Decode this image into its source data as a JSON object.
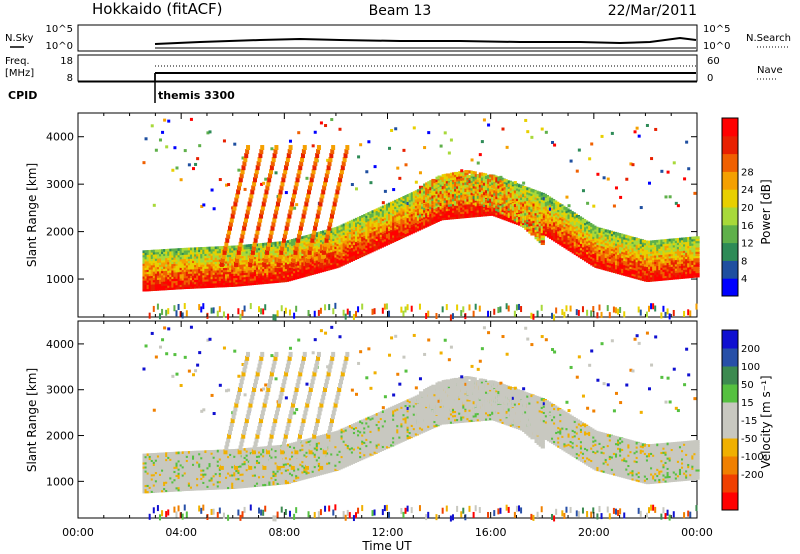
{
  "header": {
    "station": "Hokkaido (fitACF)",
    "beam": "Beam 13",
    "date": "22/Mar/2011"
  },
  "status_panels": {
    "nsky_label": "N.Sky",
    "nsearch_label": "N.Search",
    "noise_ticks_left": [
      "10^5",
      "10^0"
    ],
    "noise_ticks_right": [
      "10^5",
      "10^0"
    ],
    "freq_label_1": "Freq.",
    "freq_label_2": "[MHz]",
    "freq_ticks": [
      "18",
      "8"
    ],
    "nave_label": "Nave",
    "nave_ticks": [
      "60",
      "0"
    ],
    "cpid_label": "CPID",
    "cpid_value": "themis 3300"
  },
  "colors": {
    "power_scale": [
      "#0000ff",
      "#1f4fa0",
      "#2e8b57",
      "#5fb04a",
      "#a8d93a",
      "#e8d000",
      "#f5a000",
      "#f06000",
      "#e82000",
      "#ff0000"
    ],
    "velocity_scale": [
      "#1010d0",
      "#2850a8",
      "#3c8a50",
      "#55c040",
      "#c8c8c0",
      "#c8c8c0",
      "#f0b000",
      "#f08000",
      "#f04000",
      "#ff0000"
    ]
  },
  "chart_data": [
    {
      "type": "heatmap",
      "panel": "power",
      "ylabel": "Slant Range [km]",
      "yticks": [
        1000,
        2000,
        3000,
        4000
      ],
      "ylim": [
        200,
        4500
      ],
      "xlim": [
        0,
        24
      ],
      "colorbar_label": "Power [dB]",
      "colorbar_ticks": [
        4,
        8,
        12,
        16,
        20,
        24,
        28
      ],
      "colorbar_range": [
        0,
        32
      ],
      "data_start_hour": 2.5,
      "bands": [
        {
          "name": "lower",
          "x": [
            2.5,
            4,
            6,
            8,
            10,
            12,
            14,
            16,
            18,
            20,
            22,
            24
          ],
          "y": [
            900,
            950,
            1000,
            1100,
            1400,
            1900,
            2400,
            2500,
            2100,
            1400,
            1100,
            1200
          ]
        },
        {
          "name": "upper",
          "x": [
            13,
            14,
            15,
            16,
            17,
            18
          ],
          "y": [
            2900,
            3200,
            3300,
            3200,
            2900,
            2400
          ]
        }
      ]
    },
    {
      "type": "heatmap",
      "panel": "velocity",
      "ylabel": "Slant Range [km]",
      "yticks": [
        1000,
        2000,
        3000,
        4000
      ],
      "ylim": [
        200,
        4500
      ],
      "xlim": [
        0,
        24
      ],
      "xlabel": "Time UT",
      "xticks": [
        "00:00",
        "04:00",
        "08:00",
        "12:00",
        "16:00",
        "20:00",
        "00:00"
      ],
      "colorbar_label": "Velocity [m s⁻¹]",
      "colorbar_ticks": [
        200,
        100,
        50,
        15,
        -15,
        -50,
        -100,
        -200
      ],
      "colorbar_range": [
        -250,
        250
      ]
    }
  ]
}
